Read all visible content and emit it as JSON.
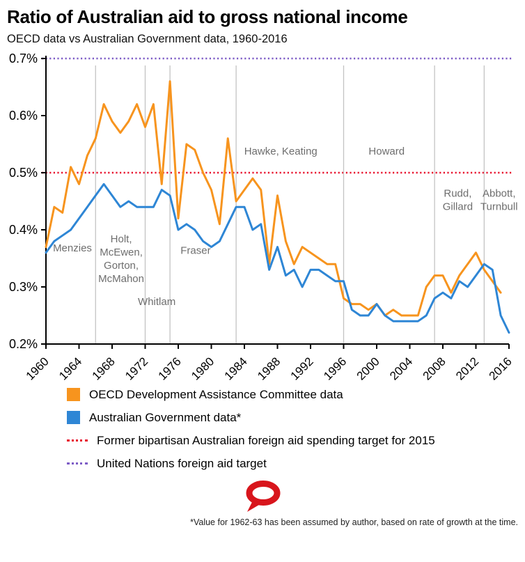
{
  "title": "Ratio of Australian aid to gross national income",
  "subtitle": "OECD data vs Australian Government data, 1960-2016",
  "footnote": "*Value for 1962-63 has been assumed by author, based on rate of growth at the time.",
  "colors": {
    "oecd": "#F7941E",
    "gov": "#2E86D5",
    "bipartisan_target": "#E8112D",
    "un_target": "#7D5CC6",
    "era_divider": "#C3C3C3",
    "era_text": "#6E6E6E",
    "axis": "#000000",
    "logo": "#D8151C"
  },
  "legend": {
    "items": [
      {
        "type": "swatch",
        "color_key": "oecd",
        "label": "OECD Development Assistance Committee data"
      },
      {
        "type": "swatch",
        "color_key": "gov",
        "label": "Australian Government data*"
      },
      {
        "type": "dotted",
        "color_key": "bipartisan_target",
        "label": "Former bipartisan Australian foreign aid spending target for 2015"
      },
      {
        "type": "dotted",
        "color_key": "un_target",
        "label": "United Nations foreign aid target"
      }
    ]
  },
  "chart_data": {
    "type": "line",
    "x_range": [
      1960,
      2016
    ],
    "ylim": [
      0.2,
      0.7
    ],
    "grid": false,
    "x_ticks": [
      1960,
      1964,
      1968,
      1972,
      1976,
      1980,
      1984,
      1988,
      1992,
      1996,
      2000,
      2004,
      2008,
      2012,
      2016
    ],
    "y_ticks": [
      {
        "value": 0.7,
        "label": "0.7%"
      },
      {
        "value": 0.6,
        "label": "0.6%"
      },
      {
        "value": 0.5,
        "label": "0.5%"
      },
      {
        "value": 0.4,
        "label": "0.4%"
      },
      {
        "value": 0.3,
        "label": "0.3%"
      },
      {
        "value": 0.2,
        "label": "0.2%"
      }
    ],
    "target_lines": [
      {
        "name": "un-target",
        "value": 0.7,
        "color_key": "un_target",
        "style": "dotted"
      },
      {
        "name": "bipartisan-target",
        "value": 0.5,
        "color_key": "bipartisan_target",
        "style": "dotted"
      }
    ],
    "eras": [
      {
        "lines": [
          "Menzies"
        ],
        "x_year": 1963.2,
        "y_value": 0.362,
        "divider_year": 1966
      },
      {
        "lines": [
          "Holt,",
          "McEwen,",
          "Gorton,",
          "McMahon"
        ],
        "x_year": 1969.1,
        "y_value": 0.378,
        "divider_year": 1972
      },
      {
        "lines": [
          "Whitlam"
        ],
        "x_year": 1973.4,
        "y_value": 0.268,
        "divider_year": 1975
      },
      {
        "lines": [
          "Fraser"
        ],
        "x_year": 1978.1,
        "y_value": 0.358,
        "divider_year": 1983
      },
      {
        "lines": [
          "Hawke, Keating"
        ],
        "x_year": 1988.4,
        "y_value": 0.532,
        "divider_year": 1996
      },
      {
        "lines": [
          "Howard"
        ],
        "x_year": 2001.2,
        "y_value": 0.532,
        "divider_year": 2007
      },
      {
        "lines": [
          "Rudd,",
          "Gillard"
        ],
        "x_year": 2009.8,
        "y_value": 0.458,
        "divider_year": 2013
      },
      {
        "lines": [
          "Abbott,",
          "Turnbull"
        ],
        "x_year": 2014.8,
        "y_value": 0.458,
        "divider_year": null
      }
    ],
    "series": [
      {
        "key": "oecd",
        "name": "OECD Development Assistance Committee data",
        "color_key": "oecd",
        "start_year": 1960,
        "values": [
          0.37,
          0.44,
          0.43,
          0.51,
          0.48,
          0.53,
          0.56,
          0.62,
          0.59,
          0.57,
          0.59,
          0.62,
          0.58,
          0.62,
          0.48,
          0.66,
          0.42,
          0.55,
          0.54,
          0.5,
          0.47,
          0.41,
          0.56,
          0.45,
          0.47,
          0.49,
          0.47,
          0.34,
          0.46,
          0.38,
          0.34,
          0.37,
          0.36,
          0.35,
          0.34,
          0.34,
          0.28,
          0.27,
          0.27,
          0.26,
          0.27,
          0.25,
          0.26,
          0.25,
          0.25,
          0.25,
          0.3,
          0.32,
          0.32,
          0.29,
          0.32,
          0.34,
          0.36,
          0.33,
          0.31,
          0.29
        ]
      },
      {
        "key": "gov",
        "name": "Australian Government data*",
        "color_key": "gov",
        "start_year": 1960,
        "values": [
          0.36,
          0.38,
          0.39,
          0.4,
          0.42,
          0.44,
          0.46,
          0.48,
          0.46,
          0.44,
          0.45,
          0.44,
          0.44,
          0.44,
          0.47,
          0.46,
          0.4,
          0.41,
          0.4,
          0.38,
          0.37,
          0.38,
          0.41,
          0.44,
          0.44,
          0.4,
          0.41,
          0.33,
          0.37,
          0.32,
          0.33,
          0.3,
          0.33,
          0.33,
          0.32,
          0.31,
          0.31,
          0.26,
          0.25,
          0.25,
          0.27,
          0.25,
          0.24,
          0.24,
          0.24,
          0.24,
          0.25,
          0.28,
          0.29,
          0.28,
          0.31,
          0.3,
          0.32,
          0.34,
          0.33,
          0.25,
          0.22
        ]
      }
    ]
  }
}
